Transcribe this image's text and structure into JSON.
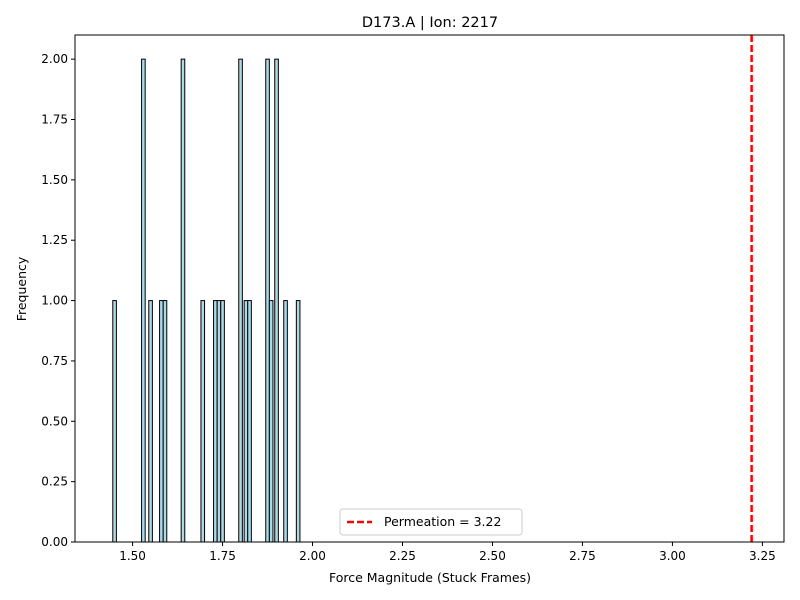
{
  "chart_data": {
    "type": "bar",
    "title": "D173.A | Ion: 2217",
    "xlabel": "Force Magnitude (Stuck Frames)",
    "ylabel": "Frequency",
    "xlim": [
      1.34,
      3.31
    ],
    "ylim": [
      0,
      2.1
    ],
    "bin_width": 0.01,
    "bars": [
      {
        "x": 1.45,
        "y": 1
      },
      {
        "x": 1.53,
        "y": 2
      },
      {
        "x": 1.55,
        "y": 1
      },
      {
        "x": 1.58,
        "y": 1
      },
      {
        "x": 1.59,
        "y": 1
      },
      {
        "x": 1.64,
        "y": 2
      },
      {
        "x": 1.695,
        "y": 1
      },
      {
        "x": 1.73,
        "y": 1
      },
      {
        "x": 1.74,
        "y": 1
      },
      {
        "x": 1.75,
        "y": 1
      },
      {
        "x": 1.8,
        "y": 2
      },
      {
        "x": 1.815,
        "y": 1
      },
      {
        "x": 1.825,
        "y": 1
      },
      {
        "x": 1.875,
        "y": 2
      },
      {
        "x": 1.885,
        "y": 1
      },
      {
        "x": 1.9,
        "y": 2
      },
      {
        "x": 1.925,
        "y": 1
      },
      {
        "x": 1.96,
        "y": 1
      }
    ],
    "xticks": [
      "1.50",
      "1.75",
      "2.00",
      "2.25",
      "2.50",
      "2.75",
      "3.00",
      "3.25"
    ],
    "xtick_values": [
      1.5,
      1.75,
      2.0,
      2.25,
      2.5,
      2.75,
      3.0,
      3.25
    ],
    "yticks": [
      "0.00",
      "0.25",
      "0.50",
      "0.75",
      "1.00",
      "1.25",
      "1.50",
      "1.75",
      "2.00"
    ],
    "ytick_values": [
      0,
      0.25,
      0.5,
      0.75,
      1.0,
      1.25,
      1.5,
      1.75,
      2.0
    ],
    "reference_line": {
      "x": 3.22,
      "label": "Permeation = 3.22",
      "color": "#ff0000",
      "style": "dashed"
    },
    "bar_color": "#add8e6",
    "bar_edge_color": "#000000",
    "legend_position": "bottom-center",
    "grid": false
  }
}
